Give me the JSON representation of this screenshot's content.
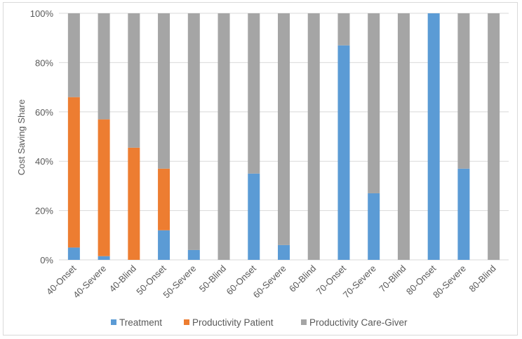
{
  "chart_data": {
    "type": "bar",
    "stacked": true,
    "title": "",
    "xlabel": "",
    "ylabel": "Cost Saving Share",
    "ylim": [
      0,
      100
    ],
    "yticks": [
      "0%",
      "20%",
      "40%",
      "60%",
      "80%",
      "100%"
    ],
    "ytick_values": [
      0,
      20,
      40,
      60,
      80,
      100
    ],
    "categories": [
      "40-Onset",
      "40-Severe",
      "40-Blind",
      "50-Onset",
      "50-Severe",
      "50-Blind",
      "60-Onset",
      "60-Severe",
      "60-Blind",
      "70-Onset",
      "70-Severe",
      "70-Blind",
      "80-Onset",
      "80-Severe",
      "80-Blind"
    ],
    "series": [
      {
        "name": "Treatment",
        "color": "#5b9bd5",
        "values": [
          5,
          1.5,
          0,
          12,
          4,
          0,
          35,
          6,
          0,
          87,
          27,
          0,
          100,
          37,
          0
        ]
      },
      {
        "name": "Productivity Patient",
        "color": "#ed7d31",
        "values": [
          61,
          55.5,
          45.5,
          25,
          0,
          0,
          0,
          0,
          0,
          0,
          0,
          0,
          0,
          0,
          0
        ]
      },
      {
        "name": "Productivity Care-Giver",
        "color": "#a5a5a5",
        "values": [
          34,
          43,
          54.5,
          63,
          96,
          100,
          65,
          94,
          100,
          13,
          73,
          100,
          0,
          63,
          100
        ]
      }
    ],
    "legend_position": "bottom",
    "grid": true
  }
}
